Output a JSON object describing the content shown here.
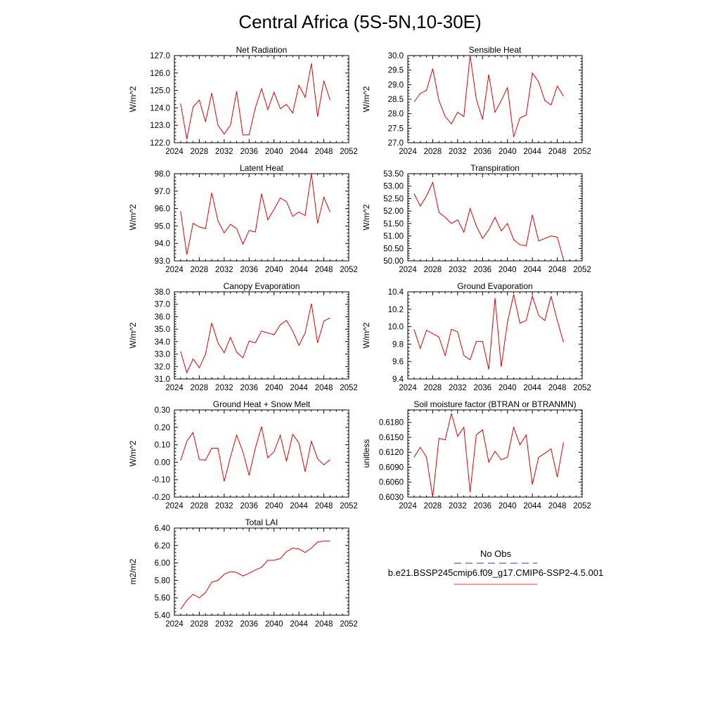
{
  "title": "Central Africa (5S-5N,10-30E)",
  "legend": {
    "items": [
      {
        "label": "No Obs",
        "color": "#3333aa",
        "dash": true
      },
      {
        "label": "b.e21.BSSP245cmip6.f09_g17.CMIP6-SSP2-4.5.001",
        "color": "#ee3333",
        "dash": false
      }
    ]
  },
  "line_color": "#e00000",
  "chart_data": [
    {
      "type": "line",
      "title": "Net Radiation",
      "ylabel": "W/m^2",
      "xlim": [
        2024,
        2052
      ],
      "ylim": [
        122.0,
        127.0
      ],
      "xticks": [
        2024,
        2028,
        2032,
        2036,
        2040,
        2044,
        2048,
        2052
      ],
      "yticks": [
        122.0,
        123.0,
        124.0,
        125.0,
        126.0,
        127.0
      ],
      "ytick_labels": [
        "122.0",
        "123.0",
        "124.0",
        "125.0",
        "126.0",
        "127.0"
      ],
      "x": [
        2025,
        2026,
        2027,
        2028,
        2029,
        2030,
        2031,
        2032,
        2033,
        2034,
        2035,
        2036,
        2037,
        2038,
        2039,
        2040,
        2041,
        2042,
        2043,
        2044,
        2045,
        2046,
        2047,
        2048,
        2049
      ],
      "values": [
        124.25,
        122.2,
        124.05,
        124.45,
        123.2,
        124.85,
        123.0,
        122.5,
        123.0,
        124.95,
        122.45,
        122.45,
        124.0,
        125.1,
        123.9,
        124.9,
        123.95,
        124.2,
        123.7,
        125.3,
        124.6,
        126.55,
        123.5,
        125.55,
        124.45
      ]
    },
    {
      "type": "line",
      "title": "Sensible Heat",
      "ylabel": "W/m^2",
      "xlim": [
        2024,
        2052
      ],
      "ylim": [
        27.0,
        30.0
      ],
      "xticks": [
        2024,
        2028,
        2032,
        2036,
        2040,
        2044,
        2048,
        2052
      ],
      "yticks": [
        27.0,
        27.5,
        28.0,
        28.5,
        29.0,
        29.5,
        30.0
      ],
      "ytick_labels": [
        "27.0",
        "27.5",
        "28.0",
        "28.5",
        "29.0",
        "29.5",
        "30.0"
      ],
      "x": [
        2025,
        2026,
        2027,
        2028,
        2029,
        2030,
        2031,
        2032,
        2033,
        2034,
        2035,
        2036,
        2037,
        2038,
        2039,
        2040,
        2041,
        2042,
        2043,
        2044,
        2045,
        2046,
        2047,
        2048,
        2049
      ],
      "values": [
        28.4,
        28.7,
        28.8,
        29.55,
        28.45,
        27.9,
        27.65,
        28.05,
        27.9,
        30.0,
        28.5,
        27.8,
        29.35,
        28.05,
        28.45,
        28.9,
        27.2,
        27.85,
        27.95,
        29.4,
        29.1,
        28.45,
        28.3,
        28.95,
        28.6
      ]
    },
    {
      "type": "line",
      "title": "Latent Heat",
      "ylabel": "W/m^2",
      "xlim": [
        2024,
        2052
      ],
      "ylim": [
        93.0,
        98.0
      ],
      "xticks": [
        2024,
        2028,
        2032,
        2036,
        2040,
        2044,
        2048,
        2052
      ],
      "yticks": [
        93.0,
        94.0,
        95.0,
        96.0,
        97.0,
        98.0
      ],
      "ytick_labels": [
        "93.0",
        "94.0",
        "95.0",
        "96.0",
        "97.0",
        "98.0"
      ],
      "x": [
        2025,
        2026,
        2027,
        2028,
        2029,
        2030,
        2031,
        2032,
        2033,
        2034,
        2035,
        2036,
        2037,
        2038,
        2039,
        2040,
        2041,
        2042,
        2043,
        2044,
        2045,
        2046,
        2047,
        2048,
        2049
      ],
      "values": [
        95.85,
        93.35,
        95.15,
        94.95,
        94.85,
        96.9,
        95.3,
        94.6,
        95.1,
        94.85,
        93.95,
        94.75,
        94.65,
        96.85,
        95.35,
        95.95,
        96.6,
        96.4,
        95.55,
        95.8,
        95.6,
        98.0,
        95.15,
        96.65,
        95.8
      ]
    },
    {
      "type": "line",
      "title": "Transpiration",
      "ylabel": "W/m^2",
      "xlim": [
        2024,
        2052
      ],
      "ylim": [
        50.0,
        53.5
      ],
      "xticks": [
        2024,
        2028,
        2032,
        2036,
        2040,
        2044,
        2048,
        2052
      ],
      "yticks": [
        50.0,
        50.5,
        51.0,
        51.5,
        52.0,
        52.5,
        53.0,
        53.5
      ],
      "ytick_labels": [
        "50.00",
        "50.50",
        "51.00",
        "51.50",
        "52.00",
        "52.50",
        "53.00",
        "53.50"
      ],
      "x": [
        2025,
        2026,
        2027,
        2028,
        2029,
        2030,
        2031,
        2032,
        2033,
        2034,
        2035,
        2036,
        2037,
        2038,
        2039,
        2040,
        2041,
        2042,
        2043,
        2044,
        2045,
        2046,
        2047,
        2048,
        2049
      ],
      "values": [
        52.7,
        52.2,
        52.6,
        53.15,
        51.95,
        51.75,
        51.5,
        51.65,
        51.15,
        52.1,
        51.4,
        50.9,
        51.25,
        51.75,
        51.2,
        51.5,
        50.85,
        50.65,
        50.6,
        51.85,
        50.8,
        50.9,
        51.0,
        50.95,
        50.05
      ]
    },
    {
      "type": "line",
      "title": "Canopy Evaporation",
      "ylabel": "W/m^2",
      "xlim": [
        2024,
        2052
      ],
      "ylim": [
        31.0,
        38.0
      ],
      "xticks": [
        2024,
        2028,
        2032,
        2036,
        2040,
        2044,
        2048,
        2052
      ],
      "yticks": [
        31.0,
        32.0,
        33.0,
        34.0,
        35.0,
        36.0,
        37.0,
        38.0
      ],
      "ytick_labels": [
        "31.0",
        "32.0",
        "33.0",
        "34.0",
        "35.0",
        "36.0",
        "37.0",
        "38.0"
      ],
      "x": [
        2025,
        2026,
        2027,
        2028,
        2029,
        2030,
        2031,
        2032,
        2033,
        2034,
        2035,
        2036,
        2037,
        2038,
        2039,
        2040,
        2041,
        2042,
        2043,
        2044,
        2045,
        2046,
        2047,
        2048,
        2049
      ],
      "values": [
        33.2,
        31.5,
        32.6,
        31.9,
        33.0,
        35.5,
        33.9,
        33.1,
        34.35,
        33.15,
        32.7,
        34.05,
        33.9,
        34.85,
        34.7,
        34.55,
        35.35,
        35.7,
        34.85,
        33.7,
        34.7,
        37.05,
        33.9,
        35.65,
        35.9
      ]
    },
    {
      "type": "line",
      "title": "Ground Evaporation",
      "ylabel": "W/m^2",
      "xlim": [
        2024,
        2052
      ],
      "ylim": [
        9.4,
        10.4
      ],
      "xticks": [
        2024,
        2028,
        2032,
        2036,
        2040,
        2044,
        2048,
        2052
      ],
      "yticks": [
        9.4,
        9.6,
        9.8,
        10.0,
        10.2,
        10.4
      ],
      "ytick_labels": [
        "9.4",
        "9.6",
        "9.8",
        "10.0",
        "10.2",
        "10.4"
      ],
      "x": [
        2025,
        2026,
        2027,
        2028,
        2029,
        2030,
        2031,
        2032,
        2033,
        2034,
        2035,
        2036,
        2037,
        2038,
        2039,
        2040,
        2041,
        2042,
        2043,
        2044,
        2045,
        2046,
        2047,
        2048,
        2049
      ],
      "values": [
        9.97,
        9.75,
        9.96,
        9.92,
        9.88,
        9.67,
        9.97,
        9.94,
        9.67,
        9.62,
        9.83,
        9.83,
        9.51,
        10.33,
        9.54,
        10.05,
        10.37,
        10.04,
        10.07,
        10.35,
        10.13,
        10.07,
        10.35,
        10.07,
        9.82
      ]
    },
    {
      "type": "line",
      "title": "Ground Heat + Snow Melt",
      "ylabel": "W/m^2",
      "xlim": [
        2024,
        2052
      ],
      "ylim": [
        -0.2,
        0.3
      ],
      "xticks": [
        2024,
        2028,
        2032,
        2036,
        2040,
        2044,
        2048,
        2052
      ],
      "yticks": [
        -0.2,
        -0.1,
        0.0,
        0.1,
        0.2,
        0.3
      ],
      "ytick_labels": [
        "-0.20",
        "-0.10",
        "0.00",
        "0.10",
        "0.20",
        "0.30"
      ],
      "x": [
        2025,
        2026,
        2027,
        2028,
        2029,
        2030,
        2031,
        2032,
        2033,
        2034,
        2035,
        2036,
        2037,
        2038,
        2039,
        2040,
        2041,
        2042,
        2043,
        2044,
        2045,
        2046,
        2047,
        2048,
        2049
      ],
      "values": [
        0.01,
        0.12,
        0.17,
        0.015,
        0.012,
        0.08,
        0.08,
        -0.11,
        0.03,
        0.155,
        0.06,
        -0.075,
        0.08,
        0.205,
        0.025,
        0.06,
        0.155,
        0.005,
        0.16,
        0.11,
        -0.055,
        0.12,
        0.02,
        -0.015,
        0.015
      ]
    },
    {
      "type": "line",
      "title": "Soil moisture factor (BTRAN or BTRANMN)",
      "ylabel": "unitless",
      "xlim": [
        2024,
        2052
      ],
      "ylim": [
        0.603,
        0.6205
      ],
      "xticks": [
        2024,
        2028,
        2032,
        2036,
        2040,
        2044,
        2048,
        2052
      ],
      "yticks": [
        0.603,
        0.606,
        0.609,
        0.612,
        0.615,
        0.618
      ],
      "ytick_labels": [
        "0.6030",
        "0.6060",
        "0.6090",
        "0.6120",
        "0.6150",
        "0.6180"
      ],
      "x": [
        2025,
        2026,
        2027,
        2028,
        2029,
        2030,
        2031,
        2032,
        2033,
        2034,
        2035,
        2036,
        2037,
        2038,
        2039,
        2040,
        2041,
        2042,
        2043,
        2044,
        2045,
        2046,
        2047,
        2048,
        2049
      ],
      "values": [
        0.611,
        0.613,
        0.611,
        0.603,
        0.6148,
        0.6145,
        0.6198,
        0.6152,
        0.617,
        0.604,
        0.6155,
        0.6165,
        0.61,
        0.6122,
        0.6105,
        0.611,
        0.617,
        0.6135,
        0.6155,
        0.6055,
        0.611,
        0.6118,
        0.6127,
        0.607,
        0.614
      ]
    },
    {
      "type": "line",
      "title": "Total LAI",
      "ylabel": "m2/m2",
      "xlim": [
        2024,
        2052
      ],
      "ylim": [
        5.4,
        6.4
      ],
      "xticks": [
        2024,
        2028,
        2032,
        2036,
        2040,
        2044,
        2048,
        2052
      ],
      "yticks": [
        5.4,
        5.6,
        5.8,
        6.0,
        6.2,
        6.4
      ],
      "ytick_labels": [
        "5.40",
        "5.60",
        "5.80",
        "6.00",
        "6.20",
        "6.40"
      ],
      "x": [
        2025,
        2026,
        2027,
        2028,
        2029,
        2030,
        2031,
        2032,
        2033,
        2034,
        2035,
        2036,
        2037,
        2038,
        2039,
        2040,
        2041,
        2042,
        2043,
        2044,
        2045,
        2046,
        2047,
        2048,
        2049
      ],
      "values": [
        5.47,
        5.57,
        5.64,
        5.6,
        5.66,
        5.78,
        5.8,
        5.87,
        5.9,
        5.89,
        5.85,
        5.88,
        5.92,
        5.95,
        6.03,
        6.03,
        6.05,
        6.13,
        6.17,
        6.16,
        6.12,
        6.17,
        6.24,
        6.25,
        6.25
      ]
    }
  ]
}
